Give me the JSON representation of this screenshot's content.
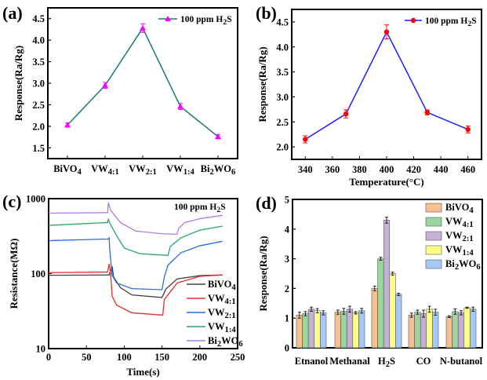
{
  "chart_data": [
    {
      "panel": "(a)",
      "type": "line",
      "ylabel": "Response(Ra/Rg)",
      "xlabel": "",
      "categories": [
        "BiVO4",
        "VW4:1",
        "VW2:1",
        "VW1:4",
        "Bi2WO6"
      ],
      "ylim": [
        1.25,
        4.75
      ],
      "yticks": [
        1.5,
        2.0,
        2.5,
        3.0,
        3.5,
        4.0,
        4.5
      ],
      "legend_position": "top-right",
      "series": [
        {
          "name": "100 ppm H2S",
          "line_color": "#1a7a78",
          "marker_color": "#ff00ff",
          "marker": "triangle",
          "values": [
            2.03,
            2.95,
            4.28,
            2.46,
            1.76
          ],
          "errors": [
            0.05,
            0.07,
            0.1,
            0.07,
            0.05
          ]
        }
      ]
    },
    {
      "panel": "(b)",
      "type": "line",
      "ylabel": "Response(Ra/Rg)",
      "xlabel": "Temperature(°C)",
      "xlim": [
        330,
        470
      ],
      "xticks": [
        340,
        360,
        380,
        400,
        420,
        440,
        460
      ],
      "ylim": [
        1.75,
        4.75
      ],
      "yticks": [
        2.0,
        2.5,
        3.0,
        3.5,
        4.0,
        4.5
      ],
      "legend_position": "top-right",
      "series": [
        {
          "name": "100 ppm H2S",
          "line_color": "#1f1fff",
          "marker_color": "#ff0000",
          "marker": "circle",
          "x": [
            340,
            370,
            400,
            430,
            460
          ],
          "values": [
            2.15,
            2.66,
            4.3,
            2.69,
            2.35
          ],
          "errors": [
            0.07,
            0.08,
            0.14,
            0.05,
            0.07
          ]
        }
      ]
    },
    {
      "panel": "(c)",
      "type": "line",
      "ylabel": "Resistance(MΩ)",
      "xlabel": "Time(s)",
      "xlim": [
        0,
        250
      ],
      "xticks": [
        0,
        50,
        100,
        150,
        200,
        250
      ],
      "ylim": [
        10,
        1000
      ],
      "yscale": "log",
      "yticks": [
        10,
        100,
        1000
      ],
      "annotation": "100 ppm H2S",
      "legend_position": "bottom-right",
      "series": [
        {
          "name": "BiVO4",
          "color": "#404040",
          "points": [
            [
              0,
              95
            ],
            [
              80,
              96
            ],
            [
              84,
              125
            ],
            [
              86,
              90
            ],
            [
              95,
              65
            ],
            [
              110,
              52
            ],
            [
              150,
              48
            ],
            [
              155,
              62
            ],
            [
              170,
              85
            ],
            [
              200,
              94
            ],
            [
              230,
              96
            ]
          ]
        },
        {
          "name": "VW4:1",
          "color": "#e8302a",
          "points": [
            [
              0,
              103
            ],
            [
              78,
              105
            ],
            [
              80,
              135
            ],
            [
              82,
              100
            ],
            [
              84,
              50
            ],
            [
              90,
              38
            ],
            [
              110,
              30
            ],
            [
              150,
              28
            ],
            [
              151,
              28
            ],
            [
              153,
              45
            ],
            [
              170,
              75
            ],
            [
              200,
              92
            ],
            [
              230,
              96
            ]
          ]
        },
        {
          "name": "VW2:1",
          "color": "#2a6fd8",
          "points": [
            [
              0,
              275
            ],
            [
              79,
              290
            ],
            [
              80,
              300
            ],
            [
              81,
              200
            ],
            [
              84,
              95
            ],
            [
              90,
              75
            ],
            [
              110,
              63
            ],
            [
              150,
              61
            ],
            [
              153,
              90
            ],
            [
              158,
              130
            ],
            [
              175,
              190
            ],
            [
              200,
              235
            ],
            [
              230,
              270
            ]
          ]
        },
        {
          "name": "VW1:4",
          "color": "#2aa56a",
          "points": [
            [
              0,
              440
            ],
            [
              78,
              480
            ],
            [
              79,
              530
            ],
            [
              82,
              450
            ],
            [
              90,
              320
            ],
            [
              100,
              220
            ],
            [
              120,
              185
            ],
            [
              158,
              175
            ],
            [
              161,
              230
            ],
            [
              175,
              300
            ],
            [
              200,
              380
            ],
            [
              230,
              430
            ]
          ]
        },
        {
          "name": "Bi2WO6",
          "color": "#b07ee0",
          "points": [
            [
              0,
              640
            ],
            [
              78,
              650
            ],
            [
              79,
              880
            ],
            [
              82,
              700
            ],
            [
              95,
              480
            ],
            [
              115,
              370
            ],
            [
              150,
              340
            ],
            [
              170,
              335
            ],
            [
              172,
              400
            ],
            [
              180,
              480
            ],
            [
              200,
              540
            ],
            [
              230,
              600
            ]
          ]
        }
      ]
    },
    {
      "panel": "(d)",
      "type": "bar",
      "ylabel": "Response(Ra/Rg)",
      "xlabel": "",
      "categories": [
        "Etnanol",
        "Methanal",
        "H2S",
        "CO",
        "N-butanol"
      ],
      "ylim": [
        0,
        5
      ],
      "yticks": [
        0,
        1,
        2,
        3,
        4,
        5
      ],
      "legend_position": "top-right",
      "series": [
        {
          "name": "BiVO4",
          "color": "#f9c08f",
          "values": [
            1.1,
            1.2,
            2.0,
            1.1,
            1.05
          ],
          "errors": [
            0.1,
            0.07,
            0.08,
            0.07,
            0.03
          ]
        },
        {
          "name": "VW4:1",
          "color": "#98d89e",
          "values": [
            1.15,
            1.23,
            3.0,
            1.2,
            1.22
          ],
          "errors": [
            0.07,
            0.1,
            0.05,
            0.07,
            0.09
          ]
        },
        {
          "name": "VW2:1",
          "color": "#c5b0d8",
          "values": [
            1.3,
            1.3,
            4.3,
            1.15,
            1.18
          ],
          "errors": [
            0.07,
            0.1,
            0.1,
            0.12,
            0.07
          ]
        },
        {
          "name": "VW1:4",
          "color": "#ffff88",
          "values": [
            1.25,
            1.18,
            2.5,
            1.3,
            1.35
          ],
          "errors": [
            0.07,
            0.04,
            0.05,
            0.1,
            0.02
          ]
        },
        {
          "name": "Bi2WO6",
          "color": "#a5c8f5",
          "values": [
            1.18,
            1.25,
            1.8,
            1.2,
            1.3
          ],
          "errors": [
            0.07,
            0.08,
            0.04,
            0.1,
            0.07
          ]
        }
      ]
    }
  ]
}
